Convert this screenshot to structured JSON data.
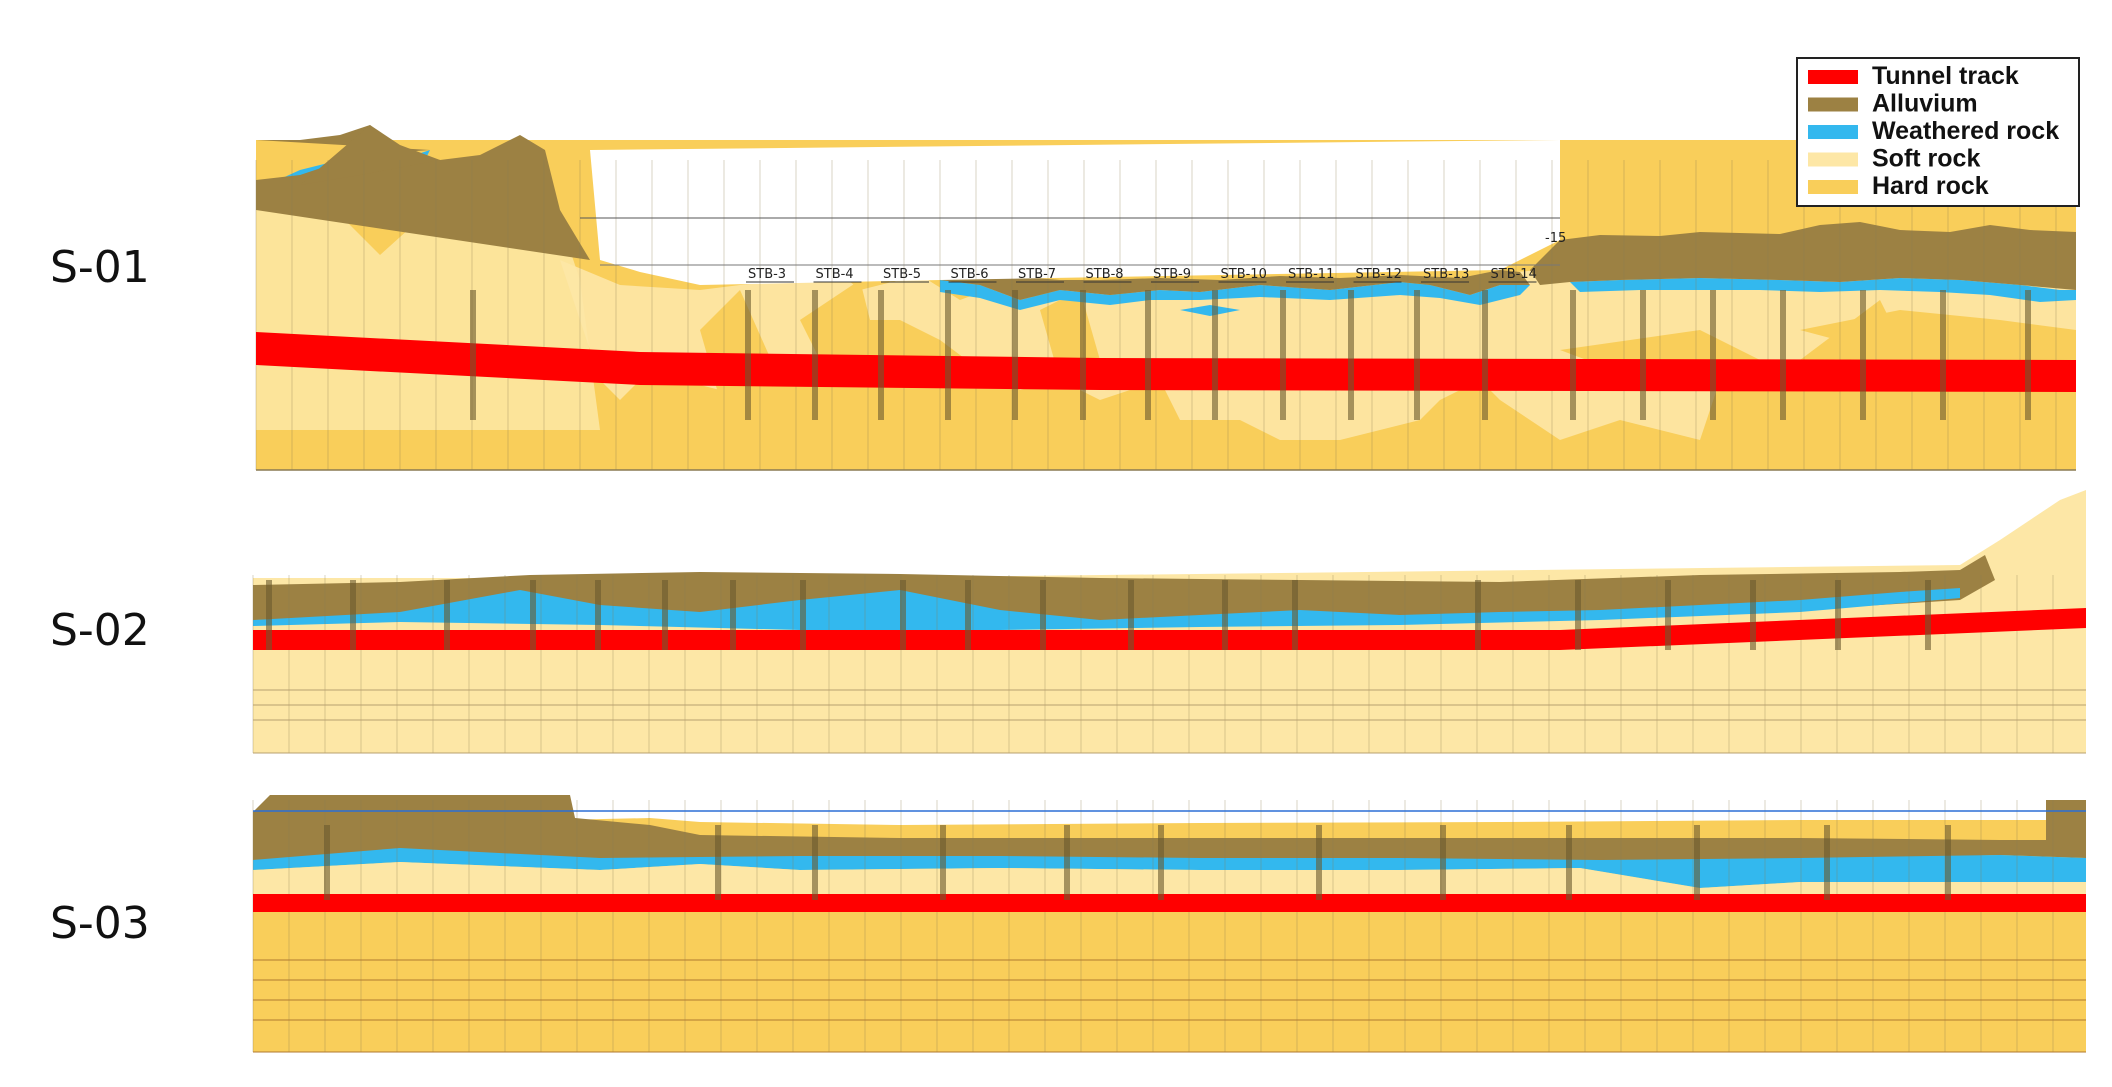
{
  "sections": [
    {
      "id": "s01",
      "label": "S-01"
    },
    {
      "id": "s02",
      "label": "S-02"
    },
    {
      "id": "s03",
      "label": "S-03"
    }
  ],
  "borehole_labels_s01": [
    "STB-3",
    "STB-4",
    "STB-5",
    "STB-6",
    "STB-7",
    "STB-8",
    "STB-9",
    "STB-10",
    "STB-11",
    "STB-12",
    "STB-13",
    "STB-14"
  ],
  "s01_elevation_label": "-15",
  "legend": [
    {
      "label": "Tunnel track",
      "color": "#ff0000"
    },
    {
      "label": "Alluvium",
      "color": "#9c8143"
    },
    {
      "label": "Weathered rock",
      "color": "#33b8ee"
    },
    {
      "label": "Soft rock",
      "color": "#fde7a6"
    },
    {
      "label": "Hard rock",
      "color": "#f9ce5a"
    }
  ],
  "colors": {
    "tunnel": "#ff0000",
    "alluvium": "#9c8143",
    "weathered": "#33b8ee",
    "soft": "#fde7a6",
    "hard": "#f9ce5a",
    "grid": "#8a7a52"
  }
}
